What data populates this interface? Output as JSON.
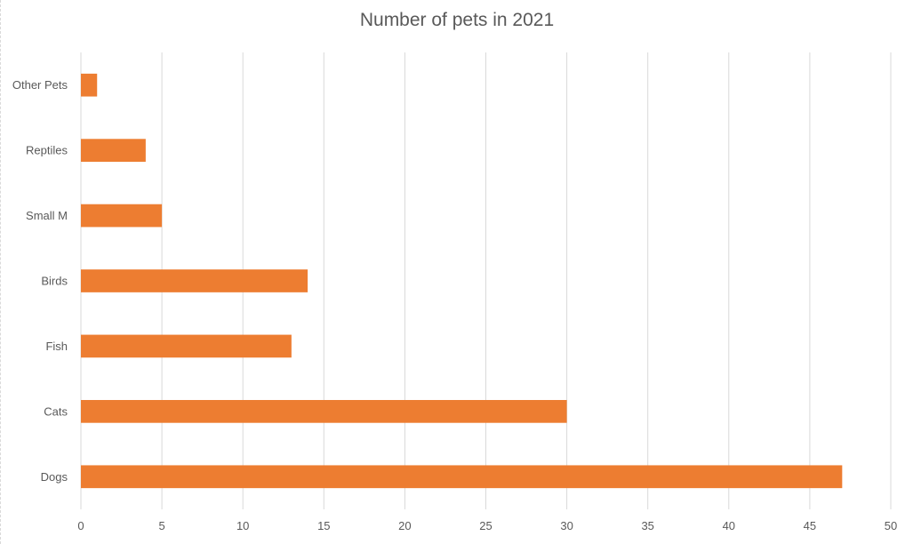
{
  "chart_data": {
    "type": "bar",
    "orientation": "horizontal",
    "title": "Number of pets in 2021",
    "xlabel": "",
    "ylabel": "",
    "categories": [
      "Other Pets",
      "Reptiles",
      "Small M",
      "Birds",
      "Fish",
      "Cats",
      "Dogs"
    ],
    "values": [
      1,
      4,
      5,
      14,
      13,
      30,
      47
    ],
    "xlim": [
      0,
      50
    ],
    "xticks": [
      0,
      5,
      10,
      15,
      20,
      25,
      30,
      35,
      40,
      45,
      50
    ],
    "grid": "vertical",
    "legend": "none",
    "colors": {
      "bar": "#ED7D31",
      "grid": "#D9D9D9",
      "text": "#595959"
    }
  }
}
